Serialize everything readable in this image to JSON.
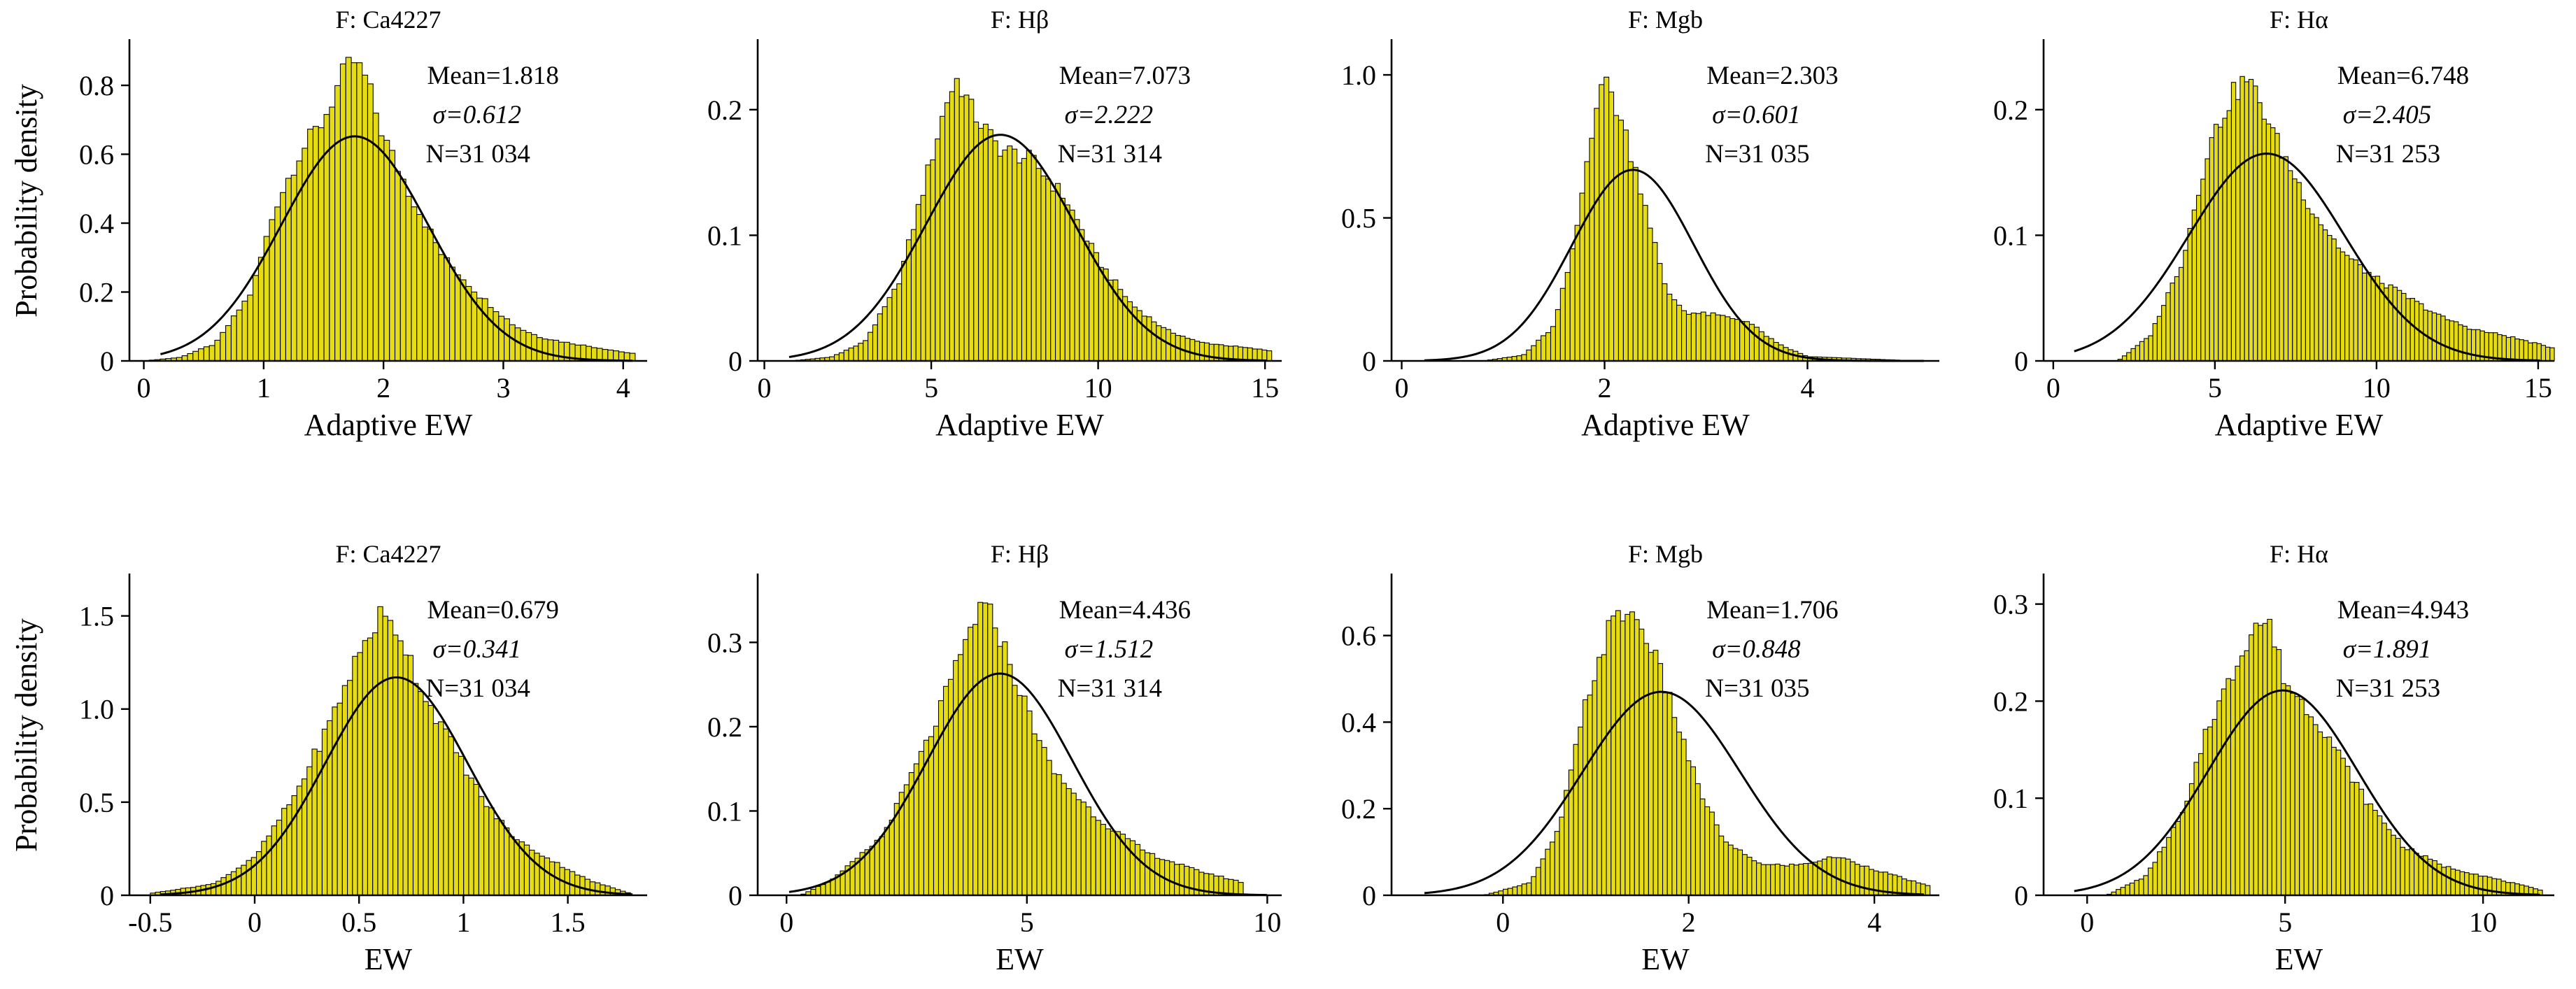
{
  "colors": {
    "bar_fill": "#e6dc14",
    "bar_edge": "#000000",
    "curve": "#000000"
  },
  "chart_data": [
    {
      "type": "bar",
      "panel_title": "F: Ca4227",
      "xlabel": "Adaptive EW",
      "ylabel": "Probability density",
      "xlim": [
        -0.12,
        4.2
      ],
      "ylim": [
        0,
        0.93
      ],
      "xticks": [
        0,
        1,
        2,
        3,
        4
      ],
      "xtick_labels": [
        "0",
        "1",
        "2",
        "3",
        "4"
      ],
      "yticks": [
        0,
        0.2,
        0.4,
        0.6,
        0.8
      ],
      "ytick_labels": [
        "0",
        "0.2",
        "0.4",
        "0.6",
        "0.8"
      ],
      "mean": 1.818,
      "sigma": 0.612,
      "curve_mean": 1.76,
      "curve_sigma": 0.612,
      "curve_peak": 0.652,
      "stats": {
        "mean": "Mean=1.818",
        "sigma": "σ=0.612",
        "n": "N=31 034"
      },
      "hist": {
        "start": 0.0,
        "end": 4.1,
        "bins": 90,
        "anchors": [
          [
            0,
            0
          ],
          [
            0.3,
            0.01
          ],
          [
            0.6,
            0.05
          ],
          [
            0.9,
            0.2
          ],
          [
            1.1,
            0.45
          ],
          [
            1.3,
            0.6
          ],
          [
            1.5,
            0.7
          ],
          [
            1.65,
            0.82
          ],
          [
            1.75,
            0.87
          ],
          [
            1.85,
            0.82
          ],
          [
            2.0,
            0.65
          ],
          [
            2.2,
            0.5
          ],
          [
            2.5,
            0.3
          ],
          [
            2.8,
            0.19
          ],
          [
            3.1,
            0.1
          ],
          [
            3.3,
            0.07
          ],
          [
            3.5,
            0.055
          ],
          [
            4.1,
            0.02
          ]
        ]
      }
    },
    {
      "type": "bar",
      "panel_title": "F: Hβ",
      "xlabel": "Adaptive EW",
      "ylabel": "",
      "xlim": [
        -0.2,
        15.5
      ],
      "ylim": [
        0,
        0.255
      ],
      "xticks": [
        0,
        5,
        10,
        15
      ],
      "xtick_labels": [
        "0",
        "5",
        "10",
        "15"
      ],
      "yticks": [
        0,
        0.1,
        0.2
      ],
      "ytick_labels": [
        "0",
        "0.1",
        "0.2"
      ],
      "mean": 7.073,
      "sigma": 2.222,
      "curve_mean": 7.073,
      "curve_sigma": 2.222,
      "curve_peak": 0.18,
      "stats": {
        "mean": "Mean=7.073",
        "sigma": "σ=2.222",
        "n": "N=31 314"
      },
      "hist": {
        "start": 0.8,
        "end": 15.2,
        "bins": 100,
        "anchors": [
          [
            0.8,
            0
          ],
          [
            2,
            0.003
          ],
          [
            3,
            0.015
          ],
          [
            4,
            0.06
          ],
          [
            4.8,
            0.14
          ],
          [
            5.5,
            0.21
          ],
          [
            5.8,
            0.225
          ],
          [
            6.2,
            0.2
          ],
          [
            7,
            0.17
          ],
          [
            8,
            0.16
          ],
          [
            9,
            0.13
          ],
          [
            10,
            0.08
          ],
          [
            11,
            0.045
          ],
          [
            12,
            0.025
          ],
          [
            13,
            0.015
          ],
          [
            15.2,
            0.008
          ]
        ]
      }
    },
    {
      "type": "bar",
      "panel_title": "F: Mgb",
      "xlabel": "Adaptive EW",
      "ylabel": "",
      "xlim": [
        -0.1,
        5.3
      ],
      "ylim": [
        0,
        1.12
      ],
      "xticks": [
        0,
        2,
        4
      ],
      "xtick_labels": [
        "0",
        "2",
        "4"
      ],
      "yticks": [
        0,
        0.5,
        1.0
      ],
      "ytick_labels": [
        "0",
        "0.5",
        "1.0"
      ],
      "mean": 2.303,
      "sigma": 0.601,
      "curve_mean": 2.28,
      "curve_sigma": 0.601,
      "curve_peak": 0.668,
      "stats": {
        "mean": "Mean=2.303",
        "sigma": "σ=0.601",
        "n": "N=31 035"
      },
      "hist": {
        "start": 0.8,
        "end": 5.1,
        "bins": 90,
        "anchors": [
          [
            0.8,
            0
          ],
          [
            1.2,
            0.02
          ],
          [
            1.5,
            0.12
          ],
          [
            1.7,
            0.4
          ],
          [
            1.85,
            0.75
          ],
          [
            1.95,
            0.98
          ],
          [
            2.05,
            0.95
          ],
          [
            2.2,
            0.8
          ],
          [
            2.4,
            0.55
          ],
          [
            2.6,
            0.25
          ],
          [
            2.8,
            0.17
          ],
          [
            3.1,
            0.16
          ],
          [
            3.4,
            0.14
          ],
          [
            3.7,
            0.06
          ],
          [
            4.0,
            0.015
          ],
          [
            5.1,
            0
          ]
        ]
      }
    },
    {
      "type": "bar",
      "panel_title": "F: Hα",
      "xlabel": "Adaptive EW",
      "ylabel": "",
      "xlim": [
        -0.3,
        15.5
      ],
      "ylim": [
        0,
        0.255
      ],
      "xticks": [
        0,
        5,
        10,
        15
      ],
      "xtick_labels": [
        "0",
        "5",
        "10",
        "15"
      ],
      "yticks": [
        0,
        0.1,
        0.2
      ],
      "ytick_labels": [
        "0",
        "0.1",
        "0.2"
      ],
      "mean": 6.748,
      "sigma": 2.405,
      "curve_mean": 6.6,
      "curve_sigma": 2.405,
      "curve_peak": 0.165,
      "stats": {
        "mean": "Mean=6.748",
        "sigma": "σ=2.405",
        "n": "N=31 253"
      },
      "hist": {
        "start": 2.0,
        "end": 15.5,
        "bins": 100,
        "anchors": [
          [
            2,
            0
          ],
          [
            3,
            0.02
          ],
          [
            4,
            0.08
          ],
          [
            4.8,
            0.17
          ],
          [
            5.5,
            0.21
          ],
          [
            6,
            0.225
          ],
          [
            6.5,
            0.2
          ],
          [
            7,
            0.17
          ],
          [
            8,
            0.12
          ],
          [
            9,
            0.085
          ],
          [
            10,
            0.065
          ],
          [
            11,
            0.05
          ],
          [
            12,
            0.035
          ],
          [
            13,
            0.025
          ],
          [
            14,
            0.02
          ],
          [
            15.5,
            0.01
          ]
        ]
      }
    },
    {
      "type": "bar",
      "panel_title": "F: Ca4227",
      "xlabel": "EW",
      "ylabel": "Probability density",
      "xlim": [
        -0.6,
        1.88
      ],
      "ylim": [
        0,
        1.72
      ],
      "xticks": [
        -0.5,
        0,
        0.5,
        1,
        1.5
      ],
      "xtick_labels": [
        "-0.5",
        "0",
        "0.5",
        "1",
        "1.5"
      ],
      "yticks": [
        0,
        0.5,
        1.0,
        1.5
      ],
      "ytick_labels": [
        "0",
        "0.5",
        "1.0",
        "1.5"
      ],
      "mean": 0.679,
      "sigma": 0.341,
      "curve_mean": 0.679,
      "curve_sigma": 0.341,
      "curve_peak": 1.17,
      "stats": {
        "mean": "Mean=0.679",
        "sigma": "σ=0.341",
        "n": "N=31 034"
      },
      "hist": {
        "start": -0.5,
        "end": 1.8,
        "bins": 95,
        "anchors": [
          [
            -0.5,
            0.01
          ],
          [
            -0.2,
            0.06
          ],
          [
            0,
            0.2
          ],
          [
            0.2,
            0.55
          ],
          [
            0.35,
            0.9
          ],
          [
            0.5,
            1.3
          ],
          [
            0.6,
            1.5
          ],
          [
            0.7,
            1.4
          ],
          [
            0.8,
            1.1
          ],
          [
            0.95,
            0.8
          ],
          [
            1.1,
            0.5
          ],
          [
            1.25,
            0.3
          ],
          [
            1.4,
            0.2
          ],
          [
            1.6,
            0.08
          ],
          [
            1.8,
            0.01
          ]
        ]
      }
    },
    {
      "type": "bar",
      "panel_title": "F: Hβ",
      "xlabel": "EW",
      "ylabel": "",
      "xlim": [
        -0.6,
        10.3
      ],
      "ylim": [
        0,
        0.38
      ],
      "xticks": [
        0,
        5,
        10
      ],
      "xtick_labels": [
        "0",
        "5",
        "10"
      ],
      "yticks": [
        0,
        0.1,
        0.2,
        0.3
      ],
      "ytick_labels": [
        "0",
        "0.1",
        "0.2",
        "0.3"
      ],
      "mean": 4.436,
      "sigma": 1.512,
      "curve_mean": 4.436,
      "curve_sigma": 1.512,
      "curve_peak": 0.263,
      "stats": {
        "mean": "Mean=4.436",
        "sigma": "σ=1.512",
        "n": "N=31 314"
      },
      "hist": {
        "start": 0.3,
        "end": 9.5,
        "bins": 90,
        "anchors": [
          [
            0.3,
            0
          ],
          [
            1,
            0.02
          ],
          [
            2,
            0.07
          ],
          [
            3,
            0.19
          ],
          [
            3.6,
            0.28
          ],
          [
            4.0,
            0.34
          ],
          [
            4.3,
            0.33
          ],
          [
            4.8,
            0.25
          ],
          [
            5.5,
            0.15
          ],
          [
            6.5,
            0.09
          ],
          [
            7.5,
            0.05
          ],
          [
            8.5,
            0.03
          ],
          [
            9.5,
            0.015
          ]
        ]
      }
    },
    {
      "type": "bar",
      "panel_title": "F: Mgb",
      "xlabel": "EW",
      "ylabel": "",
      "xlim": [
        -1.2,
        4.7
      ],
      "ylim": [
        0,
        0.74
      ],
      "xticks": [
        0,
        2,
        4
      ],
      "xtick_labels": [
        "0",
        "2",
        "4"
      ],
      "yticks": [
        0,
        0.2,
        0.4,
        0.6
      ],
      "ytick_labels": [
        "0",
        "0.2",
        "0.4",
        "0.6"
      ],
      "mean": 1.706,
      "sigma": 0.848,
      "curve_mean": 1.706,
      "curve_sigma": 0.848,
      "curve_peak": 0.47,
      "stats": {
        "mean": "Mean=1.706",
        "sigma": "σ=0.848",
        "n": "N=31 035"
      },
      "hist": {
        "start": -0.2,
        "end": 4.6,
        "bins": 95,
        "anchors": [
          [
            -0.2,
            0
          ],
          [
            0.3,
            0.03
          ],
          [
            0.6,
            0.15
          ],
          [
            0.9,
            0.45
          ],
          [
            1.15,
            0.62
          ],
          [
            1.35,
            0.66
          ],
          [
            1.55,
            0.6
          ],
          [
            1.8,
            0.45
          ],
          [
            2.1,
            0.25
          ],
          [
            2.4,
            0.12
          ],
          [
            2.8,
            0.07
          ],
          [
            3.2,
            0.07
          ],
          [
            3.6,
            0.09
          ],
          [
            4.0,
            0.06
          ],
          [
            4.6,
            0.02
          ]
        ]
      }
    },
    {
      "type": "bar",
      "panel_title": "F: Hα",
      "xlabel": "EW",
      "ylabel": "",
      "xlim": [
        -1.1,
        11.8
      ],
      "ylim": [
        0,
        0.33
      ],
      "xticks": [
        0,
        5,
        10
      ],
      "xtick_labels": [
        "0",
        "5",
        "10"
      ],
      "yticks": [
        0,
        0.1,
        0.2,
        0.3
      ],
      "ytick_labels": [
        "0",
        "0.1",
        "0.2",
        "0.3"
      ],
      "mean": 4.943,
      "sigma": 1.891,
      "curve_mean": 4.943,
      "curve_sigma": 1.891,
      "curve_peak": 0.211,
      "stats": {
        "mean": "Mean=4.943",
        "sigma": "σ=1.891",
        "n": "N=31 253"
      },
      "hist": {
        "start": 0.5,
        "end": 11.5,
        "bins": 95,
        "anchors": [
          [
            0.5,
            0
          ],
          [
            1.5,
            0.02
          ],
          [
            2.5,
            0.09
          ],
          [
            3,
            0.17
          ],
          [
            3.6,
            0.22
          ],
          [
            4.2,
            0.28
          ],
          [
            4.6,
            0.28
          ],
          [
            5,
            0.22
          ],
          [
            6,
            0.17
          ],
          [
            7,
            0.1
          ],
          [
            8,
            0.05
          ],
          [
            9,
            0.03
          ],
          [
            10,
            0.02
          ],
          [
            11.5,
            0.005
          ]
        ]
      }
    }
  ]
}
